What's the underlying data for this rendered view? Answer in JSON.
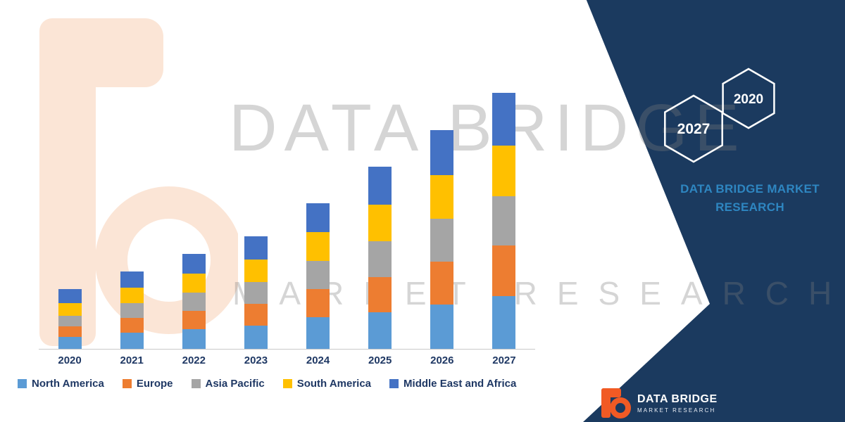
{
  "colors": {
    "panel_navy": "#1B3A5F",
    "brand_blue": "#2E86C1",
    "logo_orange": "#F15A24",
    "watermark_gray": "rgba(125,125,125,0.32)",
    "watermark_peach": "#F4B183",
    "axis_text": "#1F3864"
  },
  "watermark": {
    "line1": "DATA BRIDGE",
    "line2": "MARKET RESEARCH"
  },
  "right_panel": {
    "hexagons": [
      {
        "label": "2027"
      },
      {
        "label": "2020"
      }
    ],
    "brand_line1": "DATA BRIDGE MARKET",
    "brand_line2": "RESEARCH"
  },
  "footer_logo": {
    "title": "DATA BRIDGE",
    "subtitle": "MARKET RESEARCH"
  },
  "chart_data": {
    "type": "bar",
    "stacked": true,
    "title": "",
    "xlabel": "",
    "ylabel": "",
    "grid": false,
    "legend_position": "bottom",
    "ylim": [
      0,
      400
    ],
    "note": "No numeric axis shown in source image; values are relative units estimated from bar heights.",
    "categories": [
      "2020",
      "2021",
      "2022",
      "2023",
      "2024",
      "2025",
      "2026",
      "2027"
    ],
    "series": [
      {
        "name": "North America",
        "color": "#5B9BD5",
        "values": [
          17,
          23,
          28,
          33,
          45,
          52,
          63,
          75
        ]
      },
      {
        "name": "Europe",
        "color": "#ED7D31",
        "values": [
          15,
          21,
          26,
          31,
          40,
          50,
          61,
          72
        ]
      },
      {
        "name": "Asia Pacific",
        "color": "#A5A5A5",
        "values": [
          15,
          21,
          26,
          31,
          40,
          51,
          61,
          71
        ]
      },
      {
        "name": "South America",
        "color": "#FFC000",
        "values": [
          18,
          22,
          27,
          32,
          41,
          53,
          63,
          72
        ]
      },
      {
        "name": "Middle East and Africa",
        "color": "#4472C4",
        "values": [
          20,
          23,
          28,
          33,
          42,
          54,
          64,
          75
        ]
      }
    ]
  }
}
